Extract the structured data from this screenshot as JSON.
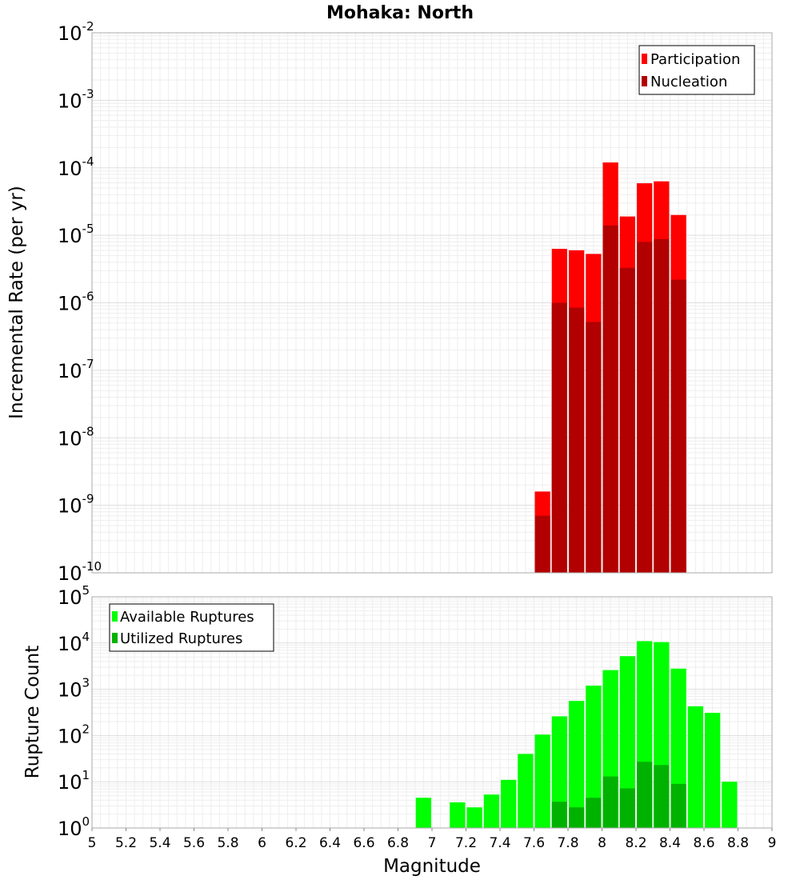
{
  "chart_data": [
    {
      "type": "bar",
      "title": "Mohaka: North",
      "ylabel": "Incremental Rate (per yr)",
      "xlabel": "",
      "yscale": "log",
      "ylim_exp": [
        -10,
        -2
      ],
      "ytick_exponents": [
        -2,
        -3,
        -4,
        -5,
        -6,
        -7,
        -8,
        -9,
        -10
      ],
      "xlim": [
        5,
        9
      ],
      "bar_width": 0.1,
      "grid": true,
      "legend_position": "top-right",
      "series": [
        {
          "name": "Participation",
          "color": "#ff0000",
          "x": [
            7.65,
            7.75,
            7.85,
            7.95,
            8.05,
            8.15,
            8.25,
            8.35,
            8.45
          ],
          "values": [
            1.6e-09,
            6.3e-06,
            6e-06,
            5.3e-06,
            0.00012,
            1.9e-05,
            5.9e-05,
            6.3e-05,
            2e-05
          ]
        },
        {
          "name": "Nucleation",
          "color": "#b20000",
          "x": [
            7.65,
            7.75,
            7.85,
            7.95,
            8.05,
            8.15,
            8.25,
            8.35,
            8.45
          ],
          "values": [
            7e-10,
            1e-06,
            8.5e-07,
            5.2e-07,
            1.4e-05,
            3.3e-06,
            8e-06,
            8.8e-06,
            2.2e-06
          ]
        }
      ]
    },
    {
      "type": "bar",
      "ylabel": "Rupture Count",
      "xlabel": "Magnitude",
      "yscale": "log",
      "ylim_exp": [
        0,
        5
      ],
      "ytick_exponents": [
        5,
        4,
        3,
        2,
        1,
        0
      ],
      "xlim": [
        5,
        9
      ],
      "xticks": [
        "5",
        "5.2",
        "5.4",
        "5.6",
        "5.8",
        "6",
        "6.2",
        "6.4",
        "6.6",
        "6.8",
        "7",
        "7.2",
        "7.4",
        "7.6",
        "7.8",
        "8",
        "8.2",
        "8.4",
        "8.6",
        "8.8",
        "9"
      ],
      "bar_width": 0.1,
      "grid": true,
      "legend_position": "top-left",
      "series": [
        {
          "name": "Available Ruptures",
          "color": "#00ff00",
          "x": [
            6.95,
            7.15,
            7.25,
            7.35,
            7.45,
            7.55,
            7.65,
            7.75,
            7.85,
            7.95,
            8.05,
            8.15,
            8.25,
            8.35,
            8.45,
            8.55,
            8.65,
            8.75
          ],
          "values": [
            4.5,
            3.6,
            2.8,
            5.3,
            11,
            40,
            105,
            260,
            560,
            1200,
            2600,
            5200,
            11000,
            10500,
            2800,
            430,
            310,
            10
          ]
        },
        {
          "name": "Utilized Ruptures",
          "color": "#00b200",
          "x": [
            7.65,
            7.75,
            7.85,
            7.95,
            8.05,
            8.15,
            8.25,
            8.35,
            8.45
          ],
          "values": [
            1,
            3.7,
            2.8,
            4.5,
            13,
            7.2,
            27,
            23,
            9
          ]
        }
      ]
    }
  ]
}
